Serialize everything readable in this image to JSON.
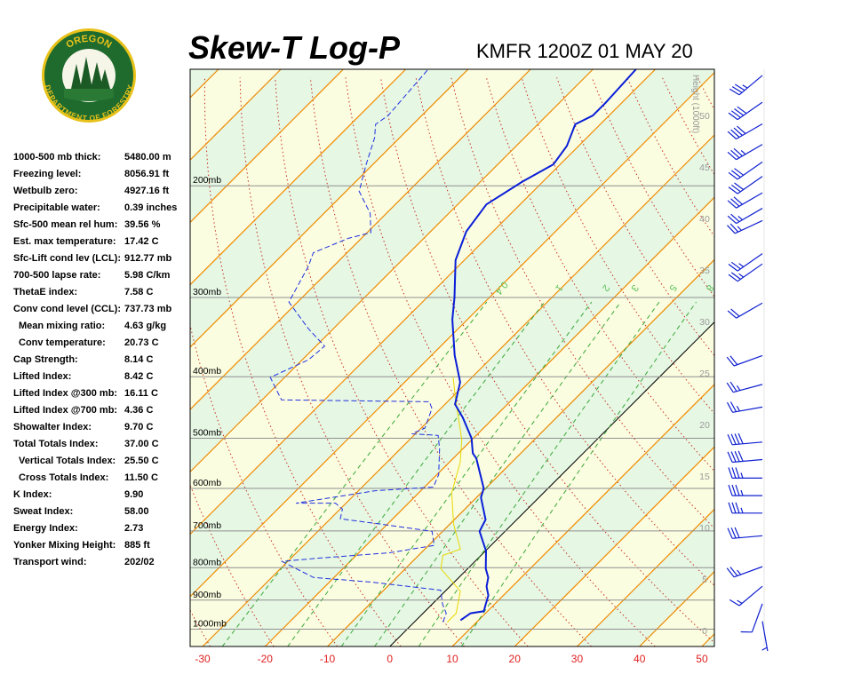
{
  "header": {
    "logo_top": "OREGON",
    "logo_bottom": "DEPARTMENT OF FORESTRY",
    "title": "Skew-T Log-P",
    "station": "KMFR 1200Z 01 MAY 20"
  },
  "indices": [
    [
      "1000-500 mb thick:",
      "5480.00 m"
    ],
    [
      "Freezing level:",
      "8056.91 ft"
    ],
    [
      "Wetbulb zero:",
      "4927.16 ft"
    ],
    [
      "Precipitable water:",
      "0.39 inches"
    ],
    [
      "Sfc-500 mean rel hum:",
      "39.56 %"
    ],
    [
      "Est. max temperature:",
      "17.42 C"
    ],
    [
      "Sfc-Lift cond lev (LCL):",
      "912.77 mb"
    ],
    [
      "700-500 lapse rate:",
      "5.98 C/km"
    ],
    [
      "ThetaE index:",
      "7.58 C"
    ],
    [
      "Conv cond level (CCL):",
      "737.73 mb"
    ],
    [
      "Mean mixing ratio:",
      "4.63 g/kg"
    ],
    [
      "Conv temperature:",
      "20.73 C"
    ],
    [
      "Cap Strength:",
      "8.14 C"
    ],
    [
      "Lifted Index:",
      "8.42 C"
    ],
    [
      "Lifted Index @300 mb:",
      "16.11 C"
    ],
    [
      "Lifted Index @700 mb:",
      "4.36 C"
    ],
    [
      "Showalter Index:",
      "9.70 C"
    ],
    [
      "Total Totals Index:",
      "37.00 C"
    ],
    [
      "Vertical Totals Index:",
      "25.50 C"
    ],
    [
      "Cross Totals Index:",
      "11.50 C"
    ],
    [
      "K Index:",
      "9.90"
    ],
    [
      "Sweat Index:",
      "58.00"
    ],
    [
      "Energy Index:",
      "2.73"
    ],
    [
      "Yonker Mixing Height:",
      "885 ft"
    ],
    [
      "Transport wind:",
      "202/02"
    ]
  ],
  "chart_data": {
    "type": "skewt",
    "xlim": [
      -32,
      52
    ],
    "xticks": [
      -30,
      -20,
      -10,
      0,
      10,
      20,
      30,
      40,
      50
    ],
    "ylim": [
      1065,
      131
    ],
    "log_y": true,
    "yticks": [
      {
        "value": 200,
        "label": "200mb"
      },
      {
        "value": 300,
        "label": "300mb"
      },
      {
        "value": 400,
        "label": "400mb"
      },
      {
        "value": 500,
        "label": "500mb"
      },
      {
        "value": 600,
        "label": "600mb"
      },
      {
        "value": 700,
        "label": "700mb"
      },
      {
        "value": 800,
        "label": "800mb"
      },
      {
        "value": 900,
        "label": "900mb"
      },
      {
        "value": 1000,
        "label": "1000mb"
      }
    ],
    "y2label": "Height (1000ft)",
    "y2lim": [
      -1.55,
      54.5
    ],
    "y2ticks": [
      0,
      5,
      10,
      15,
      20,
      25,
      30,
      35,
      40,
      45,
      50
    ],
    "mixing_ratio_labels": [
      0.4,
      1,
      2,
      3,
      5,
      8
    ],
    "isotherm_color": "#f08a00",
    "zero_isotherm_color": "#000000",
    "temperature": {
      "color": "#0a1ed8",
      "pressure": [
        968,
        944,
        937,
        914,
        885,
        857,
        829,
        803,
        753,
        701,
        672,
        620,
        600,
        538,
        528,
        500,
        464,
        442,
        408,
        370,
        325,
        300,
        262,
        236,
        214,
        197,
        185,
        173,
        160,
        155,
        148,
        131
      ],
      "values": [
        7.1,
        7.6,
        9.4,
        8.6,
        7.6,
        5.9,
        4.7,
        2.9,
        0.1,
        -4.1,
        -5.0,
        -9.3,
        -10.3,
        -16.3,
        -17.7,
        -20.3,
        -25.0,
        -28.4,
        -31.1,
        -36.3,
        -42.4,
        -45.6,
        -51.4,
        -54.3,
        -55.4,
        -53.3,
        -51.1,
        -51.9,
        -54.0,
        -52.6,
        -52.6,
        -53.1
      ]
    },
    "dewpoint": {
      "color": "#2030e0",
      "pressure": [
        975,
        944,
        914,
        868,
        843,
        829,
        782,
        773,
        758,
        738,
        701,
        683,
        670,
        647,
        633,
        633,
        605,
        597,
        571,
        520,
        495,
        492,
        482,
        449,
        438,
        435,
        401,
        376,
        358,
        336,
        305,
        268,
        255,
        242,
        237,
        221,
        204,
        185,
        168,
        160,
        155,
        131
      ],
      "values": [
        4.6,
        3.7,
        1.7,
        -0.9,
        -13.3,
        -23.3,
        -30.9,
        -25.7,
        -15.1,
        -9.1,
        -11.7,
        -21.1,
        -28.4,
        -29.6,
        -31.7,
        -38.0,
        -27.3,
        -18.6,
        -19.7,
        -23.7,
        -26.1,
        -30.6,
        -29.4,
        -31.4,
        -32.9,
        -56.9,
        -62.3,
        -59.0,
        -58.6,
        -64.0,
        -71.4,
        -74.0,
        -75.4,
        -72.1,
        -69.4,
        -72.6,
        -77.9,
        -81.1,
        -84.0,
        -86.0,
        -85.4,
        -86.4
      ]
    },
    "wetbulb": {
      "color": "#e8d800",
      "pressure": [
        975,
        944,
        871,
        803,
        765,
        748,
        683,
        610,
        545,
        503,
        435,
        401
      ],
      "values": [
        5.3,
        5.3,
        2.4,
        -4.3,
        -6.1,
        -4.3,
        -9.4,
        -14.7,
        -18.3,
        -21.6,
        -29,
        -33
      ]
    },
    "winds": {
      "color": "#1020d0",
      "height": [
        53.9,
        51.3,
        49.2,
        47.2,
        45.5,
        44.1,
        42.5,
        41,
        39.8,
        36.6,
        35.6,
        31.8,
        26.7,
        23.9,
        21.7,
        18.3,
        16.6,
        14.8,
        13.1,
        11.4,
        9.2,
        6.2,
        4.3,
        2.6,
        0.9
      ],
      "direction": [
        230,
        235,
        240,
        240,
        235,
        235,
        240,
        240,
        245,
        235,
        235,
        240,
        250,
        255,
        260,
        265,
        265,
        270,
        270,
        270,
        265,
        250,
        230,
        200,
        170
      ],
      "speed": [
        35,
        40,
        40,
        35,
        30,
        30,
        30,
        25,
        25,
        25,
        25,
        20,
        20,
        25,
        25,
        40,
        40,
        35,
        35,
        35,
        30,
        25,
        15,
        10,
        5
      ]
    }
  }
}
